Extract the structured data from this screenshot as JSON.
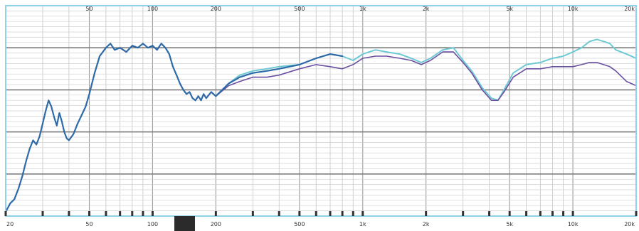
{
  "chart_data": {
    "type": "line",
    "title": "",
    "xlabel": "",
    "ylabel": "",
    "x_scale": "log",
    "xlim": [
      20,
      20000
    ],
    "ylim": [
      0,
      100
    ],
    "y_units": "relative",
    "grid": true,
    "legend": "none",
    "top_tick_labels": [
      "50",
      "100",
      "200",
      "500",
      "1k",
      "2k",
      "5k",
      "10k",
      "20k"
    ],
    "bottom_tick_labels": [
      "20",
      "50",
      "100",
      "200",
      "500",
      "1k",
      "2k",
      "5k",
      "10k",
      "20k"
    ],
    "series": [
      {
        "color": "#6ec9d4",
        "width": 2,
        "points": [
          [
            200,
            57
          ],
          [
            230,
            63
          ],
          [
            260,
            67
          ],
          [
            300,
            69
          ],
          [
            350,
            70
          ],
          [
            400,
            71
          ],
          [
            500,
            72
          ],
          [
            600,
            75
          ],
          [
            700,
            77
          ],
          [
            800,
            76
          ],
          [
            900,
            74
          ],
          [
            1000,
            77
          ],
          [
            1150,
            79
          ],
          [
            1300,
            78
          ],
          [
            1500,
            77
          ],
          [
            1700,
            75
          ],
          [
            1900,
            73
          ],
          [
            2100,
            75
          ],
          [
            2400,
            79
          ],
          [
            2700,
            80
          ],
          [
            3000,
            74
          ],
          [
            3300,
            69
          ],
          [
            3700,
            61
          ],
          [
            4100,
            56
          ],
          [
            4400,
            55
          ],
          [
            4700,
            60
          ],
          [
            5200,
            68
          ],
          [
            6000,
            72
          ],
          [
            7000,
            73
          ],
          [
            8000,
            75
          ],
          [
            9000,
            76
          ],
          [
            10000,
            78
          ],
          [
            11000,
            80
          ],
          [
            12000,
            83
          ],
          [
            13000,
            84
          ],
          [
            14000,
            83
          ],
          [
            15000,
            82
          ],
          [
            16000,
            79
          ],
          [
            18000,
            77
          ],
          [
            20000,
            75
          ]
        ]
      },
      {
        "color": "#6a4fa0",
        "width": 1.6,
        "points": [
          [
            200,
            57
          ],
          [
            230,
            62
          ],
          [
            260,
            64
          ],
          [
            300,
            66
          ],
          [
            350,
            66
          ],
          [
            400,
            67
          ],
          [
            500,
            70
          ],
          [
            600,
            72
          ],
          [
            700,
            71
          ],
          [
            800,
            70
          ],
          [
            900,
            72
          ],
          [
            1000,
            75
          ],
          [
            1150,
            76
          ],
          [
            1300,
            76
          ],
          [
            1500,
            75
          ],
          [
            1700,
            74
          ],
          [
            1900,
            72
          ],
          [
            2100,
            74
          ],
          [
            2400,
            78
          ],
          [
            2700,
            78
          ],
          [
            3000,
            73
          ],
          [
            3300,
            68
          ],
          [
            3700,
            60
          ],
          [
            4100,
            55
          ],
          [
            4400,
            55
          ],
          [
            4700,
            59
          ],
          [
            5200,
            66
          ],
          [
            6000,
            70
          ],
          [
            7000,
            70
          ],
          [
            8000,
            71
          ],
          [
            9000,
            71
          ],
          [
            10000,
            71
          ],
          [
            11000,
            72
          ],
          [
            12000,
            73
          ],
          [
            13000,
            73
          ],
          [
            14000,
            72
          ],
          [
            15000,
            71
          ],
          [
            16000,
            69
          ],
          [
            18000,
            64
          ],
          [
            20000,
            62
          ]
        ]
      },
      {
        "color": "#2e6aa8",
        "width": 2.2,
        "points": [
          [
            20,
            2
          ],
          [
            21,
            6
          ],
          [
            22,
            8
          ],
          [
            23,
            13
          ],
          [
            24,
            19
          ],
          [
            25,
            26
          ],
          [
            26,
            32
          ],
          [
            27,
            36
          ],
          [
            28,
            34
          ],
          [
            29,
            38
          ],
          [
            30,
            44
          ],
          [
            31,
            50
          ],
          [
            32,
            55
          ],
          [
            33,
            52
          ],
          [
            34,
            47
          ],
          [
            35,
            43
          ],
          [
            36,
            49
          ],
          [
            37,
            45
          ],
          [
            38,
            40
          ],
          [
            39,
            37
          ],
          [
            40,
            36
          ],
          [
            42,
            39
          ],
          [
            44,
            44
          ],
          [
            46,
            48
          ],
          [
            48,
            52
          ],
          [
            50,
            58
          ],
          [
            53,
            68
          ],
          [
            56,
            76
          ],
          [
            60,
            80
          ],
          [
            63,
            82
          ],
          [
            66,
            79
          ],
          [
            70,
            80
          ],
          [
            75,
            78
          ],
          [
            80,
            81
          ],
          [
            85,
            80
          ],
          [
            90,
            82
          ],
          [
            95,
            80
          ],
          [
            100,
            81
          ],
          [
            105,
            79
          ],
          [
            110,
            82
          ],
          [
            115,
            80
          ],
          [
            120,
            77
          ],
          [
            125,
            71
          ],
          [
            130,
            67
          ],
          [
            135,
            63
          ],
          [
            140,
            60
          ],
          [
            145,
            58
          ],
          [
            150,
            59
          ],
          [
            155,
            56
          ],
          [
            160,
            55
          ],
          [
            165,
            57
          ],
          [
            170,
            55
          ],
          [
            175,
            58
          ],
          [
            180,
            56
          ],
          [
            190,
            59
          ],
          [
            200,
            57
          ],
          [
            230,
            63
          ],
          [
            260,
            66
          ],
          [
            300,
            68
          ],
          [
            350,
            69
          ],
          [
            400,
            70
          ],
          [
            500,
            72
          ],
          [
            600,
            75
          ],
          [
            700,
            77
          ],
          [
            800,
            76
          ]
        ]
      }
    ]
  }
}
